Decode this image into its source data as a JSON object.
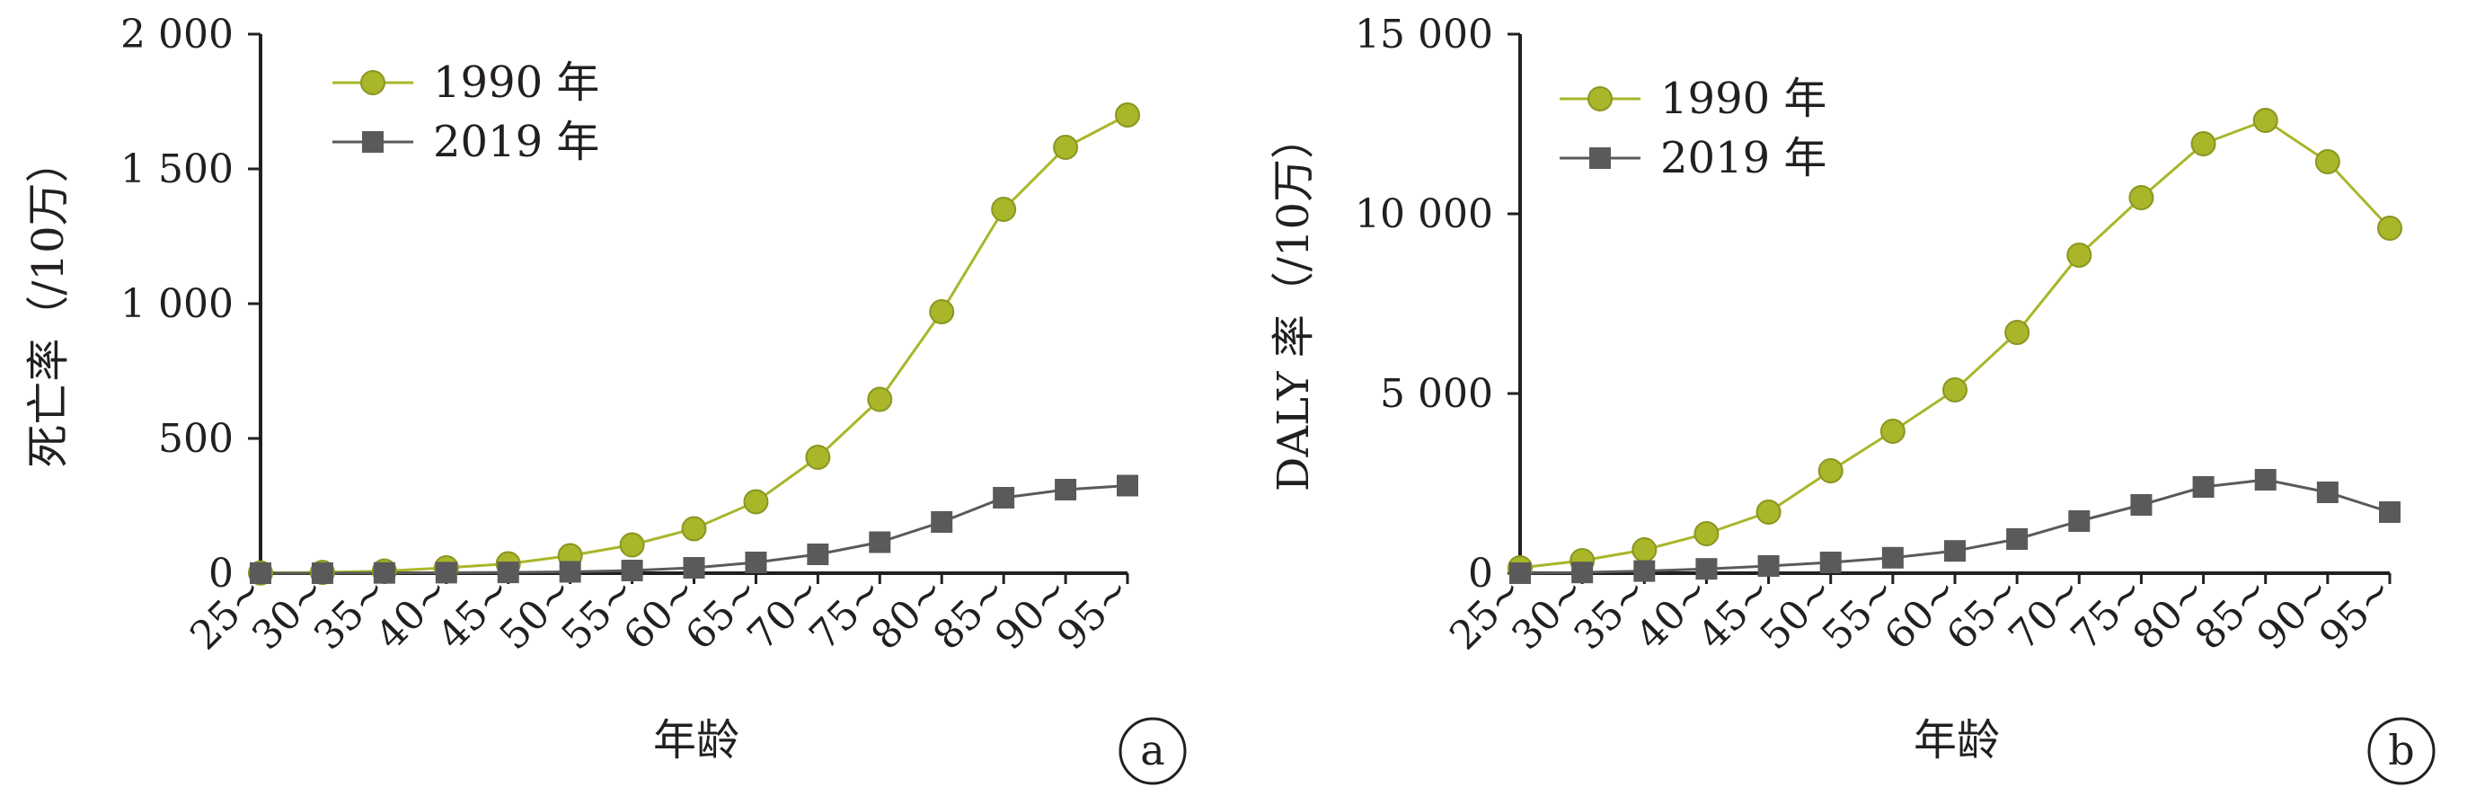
{
  "chart_data": [
    {
      "type": "line",
      "panel_label": "a",
      "categories": [
        "25~",
        "30~",
        "35~",
        "40~",
        "45~",
        "50~",
        "55~",
        "60~",
        "65~",
        "70~",
        "75~",
        "80~",
        "85~",
        "90~",
        "95~"
      ],
      "xlabel": "年龄",
      "ylabel": "死亡率（/10万）",
      "ylim": [
        0,
        2000
      ],
      "yticks": [
        0,
        500,
        1000,
        1500,
        2000
      ],
      "ytick_labels": [
        "0",
        "500",
        "1 000",
        "1 500",
        "2 000"
      ],
      "legend_position": "top-left",
      "grid": false,
      "series": [
        {
          "name": "1990 年",
          "marker": "circle",
          "color": "#a9b62a",
          "values": [
            1,
            3,
            8,
            20,
            35,
            65,
            105,
            165,
            265,
            430,
            645,
            970,
            1350,
            1580,
            1700
          ]
        },
        {
          "name": "2019 年",
          "marker": "square",
          "color": "#5a5a5a",
          "values": [
            0,
            0,
            1,
            2,
            3,
            5,
            10,
            20,
            40,
            70,
            115,
            190,
            280,
            310,
            325
          ]
        }
      ]
    },
    {
      "type": "line",
      "panel_label": "b",
      "categories": [
        "25~",
        "30~",
        "35~",
        "40~",
        "45~",
        "50~",
        "55~",
        "60~",
        "65~",
        "70~",
        "75~",
        "80~",
        "85~",
        "90~",
        "95~"
      ],
      "xlabel": "年龄",
      "ylabel": "DALY 率（/10万）",
      "ylim": [
        0,
        15000
      ],
      "yticks": [
        0,
        5000,
        10000,
        15000
      ],
      "ytick_labels": [
        "0",
        "5 000",
        "10 000",
        "15 000"
      ],
      "legend_position": "top-left",
      "grid": false,
      "series": [
        {
          "name": "1990 年",
          "marker": "circle",
          "color": "#a9b62a",
          "values": [
            150,
            350,
            650,
            1100,
            1700,
            2850,
            3950,
            5100,
            6700,
            8850,
            10450,
            11950,
            12600,
            11450,
            9600
          ]
        },
        {
          "name": "2019 年",
          "marker": "square",
          "color": "#5a5a5a",
          "values": [
            0,
            20,
            60,
            120,
            200,
            300,
            430,
            620,
            950,
            1450,
            1900,
            2400,
            2600,
            2250,
            1700
          ]
        }
      ]
    }
  ]
}
